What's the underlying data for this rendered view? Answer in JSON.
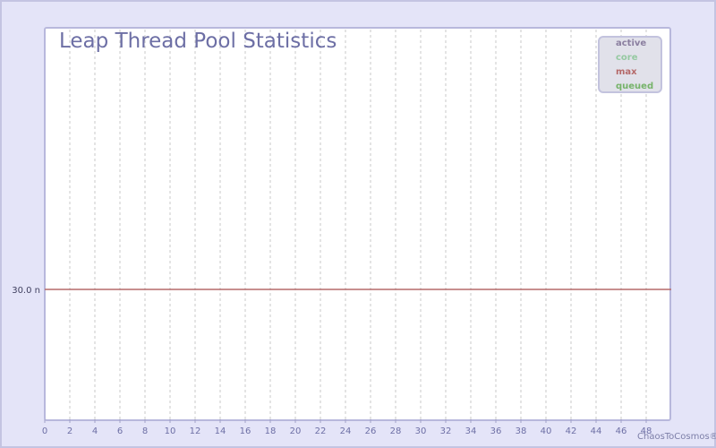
{
  "chart_data": {
    "type": "line",
    "title": "Leap Thread Pool Statistics",
    "xlabel": "",
    "ylabel": "",
    "xlim": [
      0,
      50
    ],
    "x_ticks": [
      "0",
      "2",
      "4",
      "6",
      "8",
      "10",
      "12",
      "14",
      "16",
      "18",
      "20",
      "22",
      "24",
      "26",
      "28",
      "30",
      "32",
      "34",
      "36",
      "38",
      "40",
      "42",
      "44",
      "46",
      "48"
    ],
    "y_ticks": [
      {
        "value": 30,
        "label": "30.0 n"
      }
    ],
    "grid": "vertical dashed",
    "legend_position": "top-right",
    "series": [
      {
        "name": "active",
        "color": "#8b7fa0",
        "values": []
      },
      {
        "name": "core",
        "color": "#95c9a1",
        "values": []
      },
      {
        "name": "max",
        "color": "#b56a6a",
        "x": [
          0,
          50
        ],
        "values": [
          30,
          30
        ]
      },
      {
        "name": "queued",
        "color": "#76b36a",
        "values": []
      }
    ]
  },
  "footer": "ChaosToCosmos®"
}
